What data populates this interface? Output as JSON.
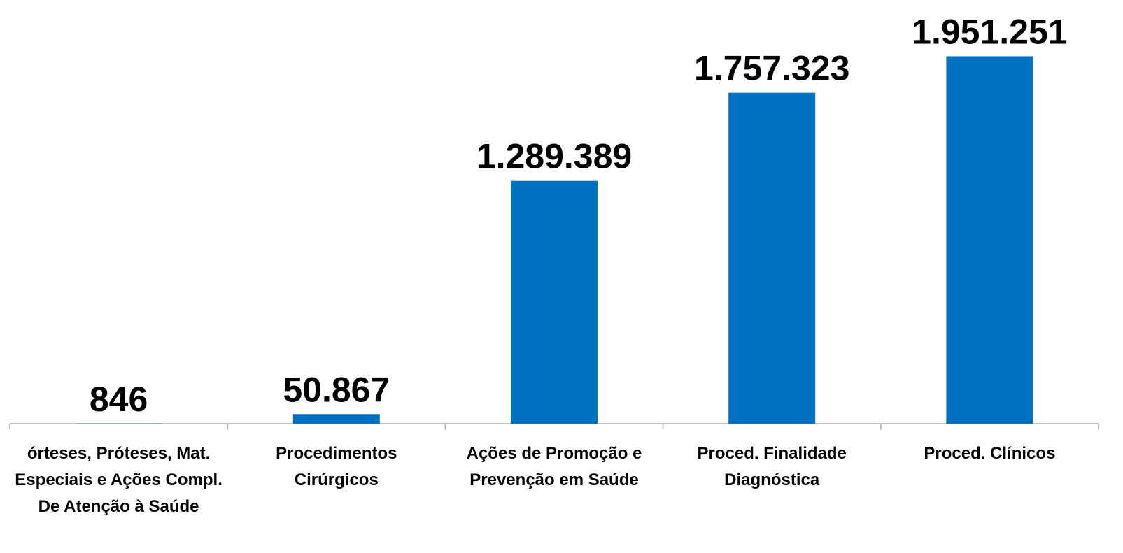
{
  "chart_data": {
    "type": "bar",
    "categories": [
      "órteses, Próteses, Mat. Especiais e Ações Compl. De Atenção à Saúde",
      "Procedimentos Cirúrgicos",
      "Ações de Promoção e Prevenção em Saúde",
      "Proced. Finalidade Diagnóstica",
      "Proced. Clínicos"
    ],
    "values": [
      846,
      50867,
      1289389,
      1757323,
      1951251
    ],
    "value_labels": [
      "846",
      "50.867",
      "1.289.389",
      "1.757.323",
      "1.951.251"
    ],
    "color": "#0070c0",
    "ylim": [
      0,
      2250000
    ]
  }
}
